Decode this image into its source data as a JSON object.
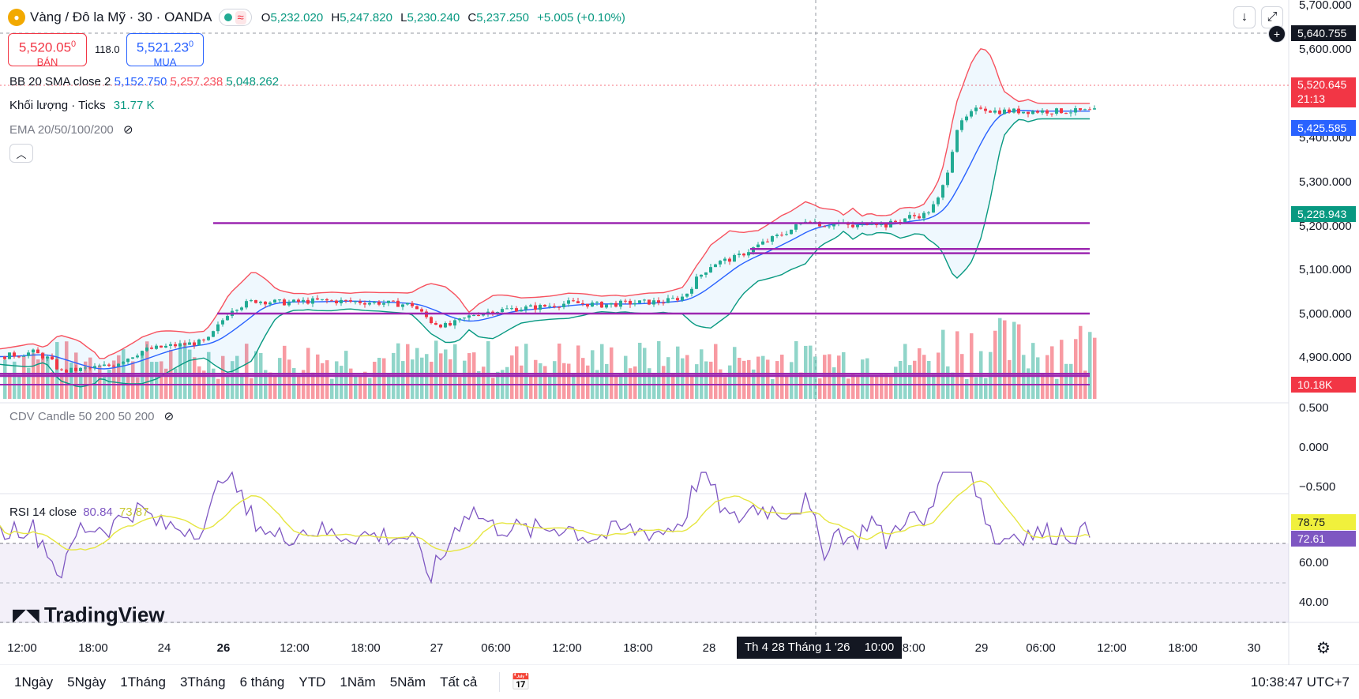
{
  "header": {
    "logo_icon": "gold-coin-icon",
    "symbol_title": "Vàng / Đô la Mỹ · 30 · OANDA",
    "market_status_icon": "market-open-dot-icon",
    "data_icon": "data-wave-icon",
    "ohlc": {
      "o_label": "O",
      "o_value": "5,232.020",
      "h_label": "H",
      "h_value": "5,247.820",
      "l_label": "L",
      "l_value": "5,230.240",
      "c_label": "C",
      "c_value": "5,237.250",
      "change": "+5.005 (+0.10%)"
    }
  },
  "trade": {
    "sell_price": "5,520.05",
    "sell_price_sup": "0",
    "sell_label": "BÁN",
    "spread": "118.0",
    "buy_price": "5,521.23",
    "buy_price_sup": "0",
    "buy_label": "MUA"
  },
  "indicators": {
    "bb": {
      "label": "BB 20 SMA close 2",
      "basis": "5,152.750",
      "upper": "5,257.238",
      "lower": "5,048.262"
    },
    "volume": {
      "label": "Khối lượng · Ticks",
      "value": "31.77 K"
    },
    "ema": {
      "label": "EMA 20/50/100/200"
    },
    "cdv": {
      "label": "CDV Candle 50 200 50 200"
    },
    "rsi": {
      "label": "RSI 14 close",
      "value": "80.84",
      "ma": "73.87"
    }
  },
  "price_axis": {
    "labels": [
      "5,700.000",
      "5,600.000",
      "5,400.000",
      "5,300.000",
      "5,200.000",
      "5,100.000",
      "5,000.000",
      "4,900.000"
    ],
    "cdv_labels": [
      "0.500",
      "0.000",
      "−0.500"
    ],
    "rsi_labels": [
      "60.00",
      "40.00"
    ]
  },
  "price_tags": {
    "crosshair": "5,640.755",
    "last": "5,520.645",
    "countdown": "21:13",
    "bb_basis": "5,425.585",
    "bb_lower": "5,228.943",
    "volume": "10.18K",
    "rsi": "78.75",
    "rsi_ma": "72.61"
  },
  "time_axis": {
    "labels": [
      "12:00",
      "18:00",
      "24",
      "26",
      "12:00",
      "18:00",
      "27",
      "06:00",
      "12:00",
      "18:00",
      "28",
      "18:00",
      "29",
      "06:00",
      "12:00",
      "18:00",
      "30"
    ],
    "crosshair_label": "Th 4 28 Tháng 1 '26",
    "crosshair_time": "10:00"
  },
  "ranges": [
    "1Ngày",
    "5Ngày",
    "1Tháng",
    "3Tháng",
    "6 tháng",
    "YTD",
    "1Năm",
    "5Năm",
    "Tất cả"
  ],
  "clock": "10:38:47 UTC+7",
  "watermark": "TradingView",
  "colors": {
    "up": "#22ab94",
    "down": "#f23645",
    "bb_upper": "#f7525f",
    "bb_basis": "#2962ff",
    "bb_lower": "#089981",
    "level": "#9c27b0",
    "rsi": "#7e57c2",
    "rsi_ma": "#e6e640"
  },
  "chart_data": {
    "type": "candlestick",
    "symbol": "XAU/USD",
    "timeframe": "30",
    "y_range": [
      4850,
      5720
    ],
    "price_path": [
      [
        0,
        4950
      ],
      [
        40,
        4960
      ],
      [
        60,
        4945
      ],
      [
        75,
        4915
      ],
      [
        100,
        4920
      ],
      [
        140,
        4930
      ],
      [
        180,
        4965
      ],
      [
        215,
        4975
      ],
      [
        260,
        4985
      ],
      [
        290,
        5060
      ],
      [
        320,
        5080
      ],
      [
        360,
        5075
      ],
      [
        400,
        5080
      ],
      [
        440,
        5078
      ],
      [
        480,
        5075
      ],
      [
        520,
        5070
      ],
      [
        545,
        5030
      ],
      [
        565,
        5020
      ],
      [
        600,
        5050
      ],
      [
        640,
        5060
      ],
      [
        680,
        5065
      ],
      [
        720,
        5075
      ],
      [
        760,
        5070
      ],
      [
        800,
        5075
      ],
      [
        840,
        5078
      ],
      [
        865,
        5090
      ],
      [
        880,
        5130
      ],
      [
        900,
        5165
      ],
      [
        930,
        5180
      ],
      [
        960,
        5210
      ],
      [
        1000,
        5245
      ],
      [
        1020,
        5270
      ],
      [
        1040,
        5255
      ],
      [
        1060,
        5260
      ],
      [
        1080,
        5250
      ],
      [
        1100,
        5265
      ],
      [
        1120,
        5255
      ],
      [
        1150,
        5275
      ],
      [
        1170,
        5280
      ],
      [
        1185,
        5310
      ],
      [
        1195,
        5360
      ],
      [
        1210,
        5480
      ],
      [
        1225,
        5510
      ],
      [
        1240,
        5530
      ],
      [
        1255,
        5520
      ]
    ],
    "horizontal_levels": [
      5260,
      5200,
      5190,
      5050,
      4910,
      4905
    ]
  }
}
